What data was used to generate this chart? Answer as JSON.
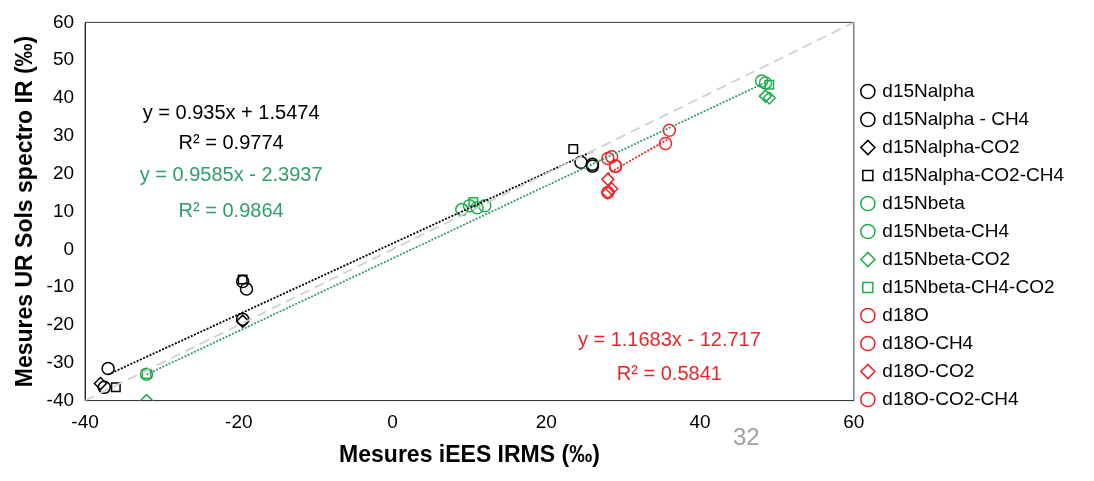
{
  "chart_data": {
    "type": "scatter",
    "xlabel": "Mesures iEES IRMS (‰)",
    "ylabel": "Mesures UR Sols spectro IR (‰)",
    "xlim": [
      -40,
      60
    ],
    "xticks": [
      -40,
      -20,
      0,
      20,
      40,
      60
    ],
    "ylim": [
      -40,
      60
    ],
    "yticks": [
      -40,
      -30,
      -20,
      -10,
      0,
      10,
      20,
      30,
      40,
      50,
      60
    ],
    "grid": false,
    "legend": "right",
    "series": [
      {
        "type": "line",
        "color": "#d0d0d0",
        "line_style": "dashed",
        "marker": "none",
        "x": [
          -40,
          60
        ],
        "values": [
          -40,
          60
        ]
      },
      {
        "type": "line",
        "color": "#000000",
        "line_style": "dotted",
        "marker": "none",
        "x": [
          -37,
          26
        ],
        "values": [
          -33.1,
          25.9
        ]
      },
      {
        "type": "line",
        "color": "#2e9e6a",
        "line_style": "dotted",
        "marker": "none",
        "x": [
          -32,
          49
        ],
        "values": [
          -33.1,
          44.6
        ]
      },
      {
        "type": "line",
        "color": "#e8262a",
        "line_style": "dotted",
        "marker": "none",
        "x": [
          28,
          36
        ],
        "values": [
          20,
          29.3
        ]
      },
      {
        "name": "d15Nalpha",
        "color": "#000000",
        "marker": "circle",
        "x": [
          -37.5,
          -19.5,
          -19.5,
          24.5,
          26
        ],
        "values": [
          -36.5,
          -8.5,
          -18.5,
          23,
          22.5
        ]
      },
      {
        "name": "d15Nalpha - CH4",
        "color": "#000000",
        "marker": "circle",
        "x": [
          -37,
          -19,
          26
        ],
        "values": [
          -31.5,
          -10.5,
          22
        ]
      },
      {
        "name": "d15Nalpha-CO2",
        "color": "#000000",
        "marker": "diamond",
        "x": [
          -38,
          -19.5
        ],
        "values": [
          -35.5,
          -19
        ]
      },
      {
        "name": "d15Nalpha-CO2-CH4",
        "color": "#000000",
        "marker": "square",
        "x": [
          -36,
          -19.5,
          23.5
        ],
        "values": [
          -36.5,
          -8,
          26.5
        ]
      },
      {
        "name": "d15Nbeta",
        "color": "#1fae4f",
        "marker": "circle",
        "x": [
          9,
          10,
          11,
          48.5
        ],
        "values": [
          10.5,
          11.5,
          11,
          44
        ]
      },
      {
        "name": "d15Nbeta-CH4",
        "color": "#1fae4f",
        "marker": "circle",
        "x": [
          -32,
          12,
          48
        ],
        "values": [
          -33,
          11.5,
          44.5
        ]
      },
      {
        "name": "d15Nbeta-CO2",
        "color": "#1fae4f",
        "marker": "diamond",
        "x": [
          -32,
          48.5,
          49
        ],
        "values": [
          -40,
          40.5,
          40
        ]
      },
      {
        "name": "d15Nbeta-CH4-CO2",
        "color": "#1fae4f",
        "marker": "square",
        "x": [
          -32,
          10.5,
          49
        ],
        "values": [
          -33,
          12.5,
          43.5
        ]
      },
      {
        "name": "d18O",
        "color": "#e8262a",
        "marker": "circle",
        "x": [
          28,
          29,
          28
        ],
        "values": [
          24,
          22,
          15
        ]
      },
      {
        "name": "d18O-CH4",
        "color": "#e8262a",
        "marker": "circle",
        "x": [
          28.5,
          35.5
        ],
        "values": [
          24.5,
          28
        ]
      },
      {
        "name": "d18O-CO2",
        "color": "#e8262a",
        "marker": "diamond",
        "x": [
          28,
          28,
          28.5
        ],
        "values": [
          18.5,
          15,
          16
        ]
      },
      {
        "name": "d18O-CO2-CH4",
        "color": "#e8262a",
        "marker": "circle",
        "x": [
          36,
          29
        ],
        "values": [
          31.5,
          22
        ]
      }
    ],
    "annotations": [
      "y = 0.935x + 1.5474",
      "R² = 0.9774",
      "y = 0.9585x - 2.3937",
      "R² = 0.9864",
      "y = 1.1683x - 12.717",
      "R² = 0.5841",
      "32"
    ]
  }
}
